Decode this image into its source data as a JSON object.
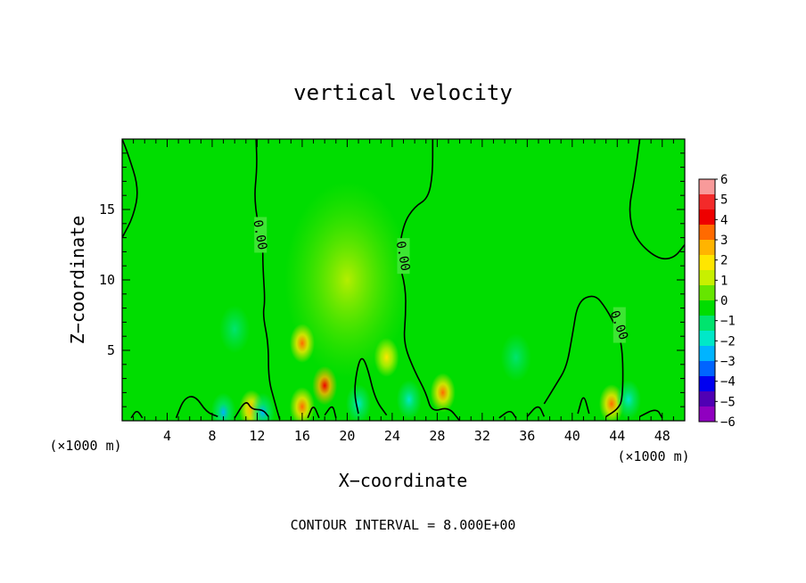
{
  "chart_data": {
    "type": "heatmap",
    "title": "vertical velocity",
    "xlabel": "X−coordinate",
    "ylabel": "Z−coordinate",
    "x_unit": "(×1000 m)",
    "xlim": [
      0,
      50
    ],
    "ylim": [
      0,
      20
    ],
    "x_ticks": [
      4,
      8,
      12,
      16,
      20,
      24,
      28,
      32,
      36,
      40,
      44,
      48
    ],
    "y_ticks": [
      5,
      10,
      15
    ],
    "contour_interval_label": "CONTOUR INTERVAL = 8.000E+00",
    "contour_label": "0.00",
    "colorbar": {
      "levels": [
        6,
        5,
        4,
        3,
        2,
        1,
        0,
        -1,
        -2,
        -3,
        -4,
        -5,
        -6
      ],
      "level_labels": [
        "6",
        "5",
        "4",
        "3",
        "2",
        "1",
        "0",
        "−1",
        "−2",
        "−3",
        "−4",
        "−5",
        "−6"
      ],
      "colors": [
        "#f89a9a",
        "#f32a2a",
        "#ee0000",
        "#ff6a00",
        "#ffb400",
        "#ffe600",
        "#c8f000",
        "#66e600",
        "#00dd00",
        "#00e46e",
        "#00e8c8",
        "#00b4ff",
        "#0064ff",
        "#0000f0",
        "#5000b4",
        "#9000c0"
      ]
    },
    "features": [
      {
        "kind": "updraft",
        "x": 16,
        "z": 5.5,
        "value": 4
      },
      {
        "kind": "updraft",
        "x": 18,
        "z": 2.5,
        "value": 4.5
      },
      {
        "kind": "updraft",
        "x": 16,
        "z": 1,
        "value": 4
      },
      {
        "kind": "updraft",
        "x": 28.5,
        "z": 2,
        "value": 3.5
      },
      {
        "kind": "updraft",
        "x": 43.5,
        "z": 1.2,
        "value": 3.5
      },
      {
        "kind": "updraft",
        "x": 11.5,
        "z": 0.8,
        "value": 3
      },
      {
        "kind": "updraft",
        "x": 23.5,
        "z": 4.5,
        "value": 2
      },
      {
        "kind": "downdraft",
        "x": 10,
        "z": 6.5,
        "value": -1.5
      },
      {
        "kind": "downdraft",
        "x": 9,
        "z": 0.6,
        "value": -3
      },
      {
        "kind": "downdraft",
        "x": 12.5,
        "z": 0.6,
        "value": -3
      },
      {
        "kind": "downdraft",
        "x": 21,
        "z": 1.2,
        "value": -2
      },
      {
        "kind": "downdraft",
        "x": 25.5,
        "z": 1.5,
        "value": -2
      },
      {
        "kind": "downdraft",
        "x": 35,
        "z": 4.5,
        "value": -1.2
      },
      {
        "kind": "downdraft",
        "x": 45,
        "z": 1.5,
        "value": -2
      }
    ],
    "zero_contours": [
      [
        [
          0,
          13
        ],
        [
          1,
          14.5
        ],
        [
          1.5,
          16.5
        ],
        [
          0.5,
          19
        ],
        [
          0,
          20
        ]
      ],
      [
        [
          11.9,
          20
        ],
        [
          12,
          18
        ],
        [
          11.7,
          15.5
        ],
        [
          12.5,
          12.5
        ],
        [
          12.5,
          11
        ],
        [
          12.7,
          8.5
        ],
        [
          12.5,
          7.5
        ],
        [
          13,
          5.5
        ],
        [
          13,
          3
        ],
        [
          13.5,
          1.5
        ],
        [
          14,
          0.1
        ]
      ],
      [
        [
          27.6,
          20
        ],
        [
          27.6,
          17.5
        ],
        [
          27.2,
          15.8
        ],
        [
          26,
          15.2
        ],
        [
          25,
          14
        ],
        [
          24.5,
          11.5
        ],
        [
          25.2,
          9.5
        ],
        [
          25.2,
          7.5
        ],
        [
          25,
          5.5
        ],
        [
          26,
          3.5
        ],
        [
          27,
          2
        ],
        [
          27.5,
          0.6
        ],
        [
          29,
          1
        ],
        [
          30,
          0
        ]
      ],
      [
        [
          46,
          20
        ],
        [
          45.5,
          17
        ],
        [
          45,
          15
        ],
        [
          45.5,
          13
        ],
        [
          47.5,
          11.5
        ],
        [
          49,
          11.5
        ],
        [
          50,
          12.5
        ]
      ],
      [
        [
          37.5,
          1.2
        ],
        [
          38.5,
          2.5
        ],
        [
          39.5,
          3.8
        ],
        [
          40,
          6
        ],
        [
          40.5,
          8.5
        ],
        [
          42,
          9
        ],
        [
          43,
          8
        ],
        [
          44,
          6.5
        ],
        [
          44.5,
          5
        ],
        [
          44.5,
          1.5
        ],
        [
          44,
          0.8
        ],
        [
          43,
          0.3
        ]
      ],
      [
        [
          21,
          0.5
        ],
        [
          20.6,
          2
        ],
        [
          20.9,
          3.8
        ],
        [
          21.3,
          4.6
        ],
        [
          21.8,
          3.8
        ],
        [
          22.5,
          1.5
        ],
        [
          23.5,
          0.4
        ]
      ],
      [
        [
          18,
          0.4
        ],
        [
          18.7,
          1.2
        ],
        [
          19,
          0.2
        ]
      ],
      [
        [
          16.5,
          0.2
        ],
        [
          17,
          1.2
        ],
        [
          17.5,
          0.2
        ]
      ],
      [
        [
          8.5,
          0.3
        ],
        [
          7.5,
          0.6
        ],
        [
          6.5,
          1.8
        ],
        [
          5.5,
          1.6
        ],
        [
          4.8,
          0.2
        ]
      ],
      [
        [
          10,
          0.2
        ],
        [
          11,
          1.5
        ],
        [
          11.5,
          0.8
        ],
        [
          12.5,
          0.8
        ],
        [
          13,
          0.3
        ]
      ],
      [
        [
          0.8,
          0.2
        ],
        [
          1.3,
          0.8
        ],
        [
          1.8,
          0.2
        ]
      ],
      [
        [
          33.5,
          0.2
        ],
        [
          34.5,
          0.8
        ],
        [
          35,
          0.2
        ]
      ],
      [
        [
          36,
          0.3
        ],
        [
          37,
          1.2
        ],
        [
          37.5,
          0.3
        ]
      ],
      [
        [
          46,
          0.3
        ],
        [
          47.5,
          0.9
        ],
        [
          48,
          0.2
        ]
      ],
      [
        [
          40.5,
          0.5
        ],
        [
          41,
          2
        ],
        [
          41.5,
          0.5
        ]
      ]
    ],
    "grid": false
  }
}
